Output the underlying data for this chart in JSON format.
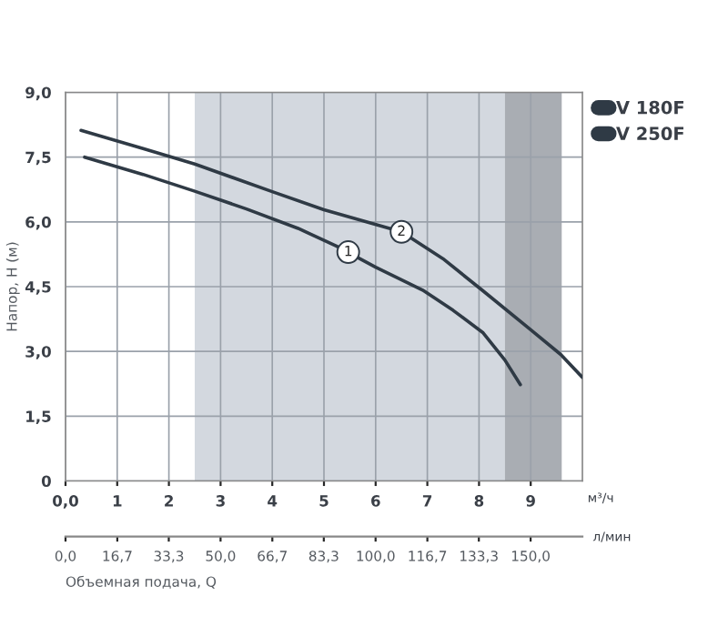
{
  "chart_data": {
    "type": "line",
    "xlabel": "м³/ч",
    "ylabel": "Напор, H (м)",
    "x2label": "л/мин",
    "xlim": [
      0,
      10
    ],
    "xticks": [
      {
        "value": 0,
        "label": "0,0"
      },
      1,
      2,
      3,
      4,
      5,
      6,
      7,
      8,
      9
    ],
    "ylim": [
      0,
      9
    ],
    "yticks": [
      0,
      {
        "value": 1.5,
        "label": "1,5"
      },
      {
        "value": 3,
        "label": "3,0"
      },
      {
        "value": 4.5,
        "label": "4,5"
      },
      {
        "value": 6,
        "label": "6,0"
      },
      {
        "value": 7.5,
        "label": "7,5"
      },
      {
        "value": 9,
        "label": "9,0"
      }
    ],
    "x2lim": [
      0,
      166.7
    ],
    "x2ticks": [
      {
        "value": 0,
        "label": "0,0"
      },
      {
        "value": 16.7,
        "label": "16,7"
      },
      {
        "value": 33.3,
        "label": "33,3"
      },
      {
        "value": 50,
        "label": "50,0"
      },
      {
        "value": 66.7,
        "label": "66,7"
      },
      {
        "value": 83.3,
        "label": "83,3"
      },
      {
        "value": 100,
        "label": "100,0"
      },
      {
        "value": 116.7,
        "label": "116,7"
      },
      {
        "value": 133.3,
        "label": "133,3"
      },
      {
        "value": 150,
        "label": "150,0"
      }
    ],
    "series": [
      {
        "name": "V 180F",
        "color": "#2f3a45",
        "x": [
          0.37,
          1.5,
          2.5,
          3.5,
          4.5,
          5.24,
          6.0,
          6.91,
          7.5,
          8.08,
          8.5,
          8.8
        ],
        "values": [
          7.5,
          7.1,
          6.71,
          6.3,
          5.85,
          5.44,
          4.95,
          4.42,
          3.95,
          3.43,
          2.8,
          2.23
        ]
      },
      {
        "name": "V 250F",
        "color": "#2f3a45",
        "x": [
          0.3,
          1.5,
          2.5,
          4.0,
          5.0,
          6.5,
          7.3,
          8.08,
          9.0,
          9.58,
          10.0
        ],
        "values": [
          8.12,
          7.7,
          7.34,
          6.7,
          6.28,
          5.77,
          5.15,
          4.4,
          3.5,
          2.93,
          2.4
        ]
      }
    ],
    "bands": [
      {
        "axis": "x",
        "from": 2.5,
        "to": 8.5,
        "color": "#d3d8df"
      },
      {
        "axis": "x",
        "from": 8.5,
        "to": 9.6,
        "color": "#a9adb3"
      }
    ],
    "annotations": [
      {
        "text": "1",
        "x": 5.47,
        "y": 5.3
      },
      {
        "text": "2",
        "x": 6.5,
        "y": 5.77
      },
      "Объемная подача, Q"
    ],
    "grid": true,
    "legend": "top right"
  }
}
